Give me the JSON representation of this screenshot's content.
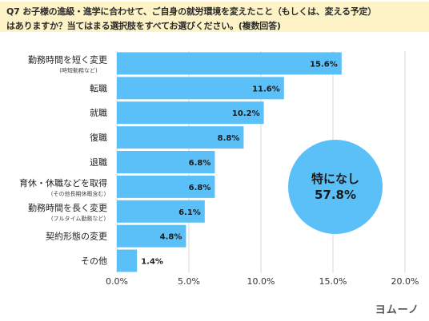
{
  "title": {
    "line1": "Q7 お子様の進級・進学に合わせて、ご自身の就労環境を変えたこと（もしくは、変える予定）",
    "line2": "はありますか？当てはまる選択肢をすべてお選びください。(複数回答)"
  },
  "highlight": {
    "label": "特になし",
    "value": "57.8%"
  },
  "logo": "ヨムーノ",
  "colors": {
    "bar": "#5bc0f8",
    "grid": "#d9d9d9",
    "band": "#fdf3c7"
  },
  "chart_data": {
    "type": "bar",
    "orientation": "horizontal",
    "categories": [
      "勤務時間を短く変更",
      "転職",
      "就職",
      "復職",
      "退職",
      "育休・休職などを取得",
      "勤務時間を長く変更",
      "契約形態の変更",
      "その他"
    ],
    "sublabels": [
      "(時短勤務など)",
      "",
      "",
      "",
      "",
      "(その他長期休暇含む)",
      "(フルタイム勤務など)",
      "",
      ""
    ],
    "values": [
      15.6,
      11.6,
      10.2,
      8.8,
      6.8,
      6.8,
      6.1,
      4.8,
      1.4
    ],
    "value_labels": [
      "15.6%",
      "11.6%",
      "10.2%",
      "8.8%",
      "6.8%",
      "6.8%",
      "6.1%",
      "4.8%",
      "1.4%"
    ],
    "xlim": [
      0,
      20
    ],
    "ticks": [
      0,
      5,
      10,
      15,
      20
    ],
    "tick_labels": [
      "0.0%",
      "5.0%",
      "10.0%",
      "15.0%",
      "20.0%"
    ],
    "grid": true
  }
}
